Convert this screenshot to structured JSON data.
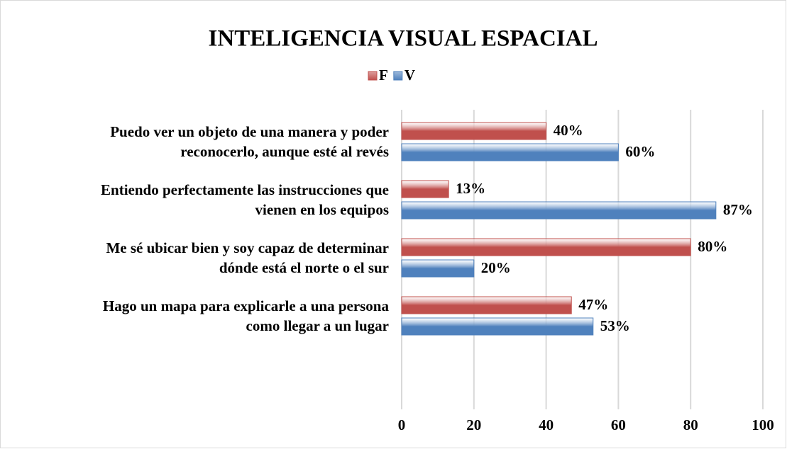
{
  "chart_data": {
    "type": "bar",
    "orientation": "horizontal",
    "title": "INTELIGENCIA VISUAL ESPACIAL",
    "categories": [
      "Puedo ver un objeto de una manera y poder\nreconocerlo, aunque esté al revés",
      "Entiendo perfectamente las instrucciones que\nvienen en los equipos",
      "Me sé ubicar bien y soy capaz de determinar\ndónde está el norte o el sur",
      "Hago un mapa para explicarle a una persona\ncomo llegar a un lugar"
    ],
    "series": [
      {
        "name": "F",
        "color": "#c0504d",
        "values": [
          40,
          13,
          80,
          47
        ],
        "value_labels": [
          "40%",
          "13%",
          "80%",
          "47%"
        ]
      },
      {
        "name": "V",
        "color": "#4f81bd",
        "values": [
          60,
          87,
          20,
          53
        ],
        "value_labels": [
          "60%",
          "87%",
          "20%",
          "53%"
        ]
      }
    ],
    "xlim": [
      0,
      100
    ],
    "xticks": [
      0,
      20,
      40,
      60,
      80,
      100
    ],
    "grid": true,
    "legend": "top"
  }
}
